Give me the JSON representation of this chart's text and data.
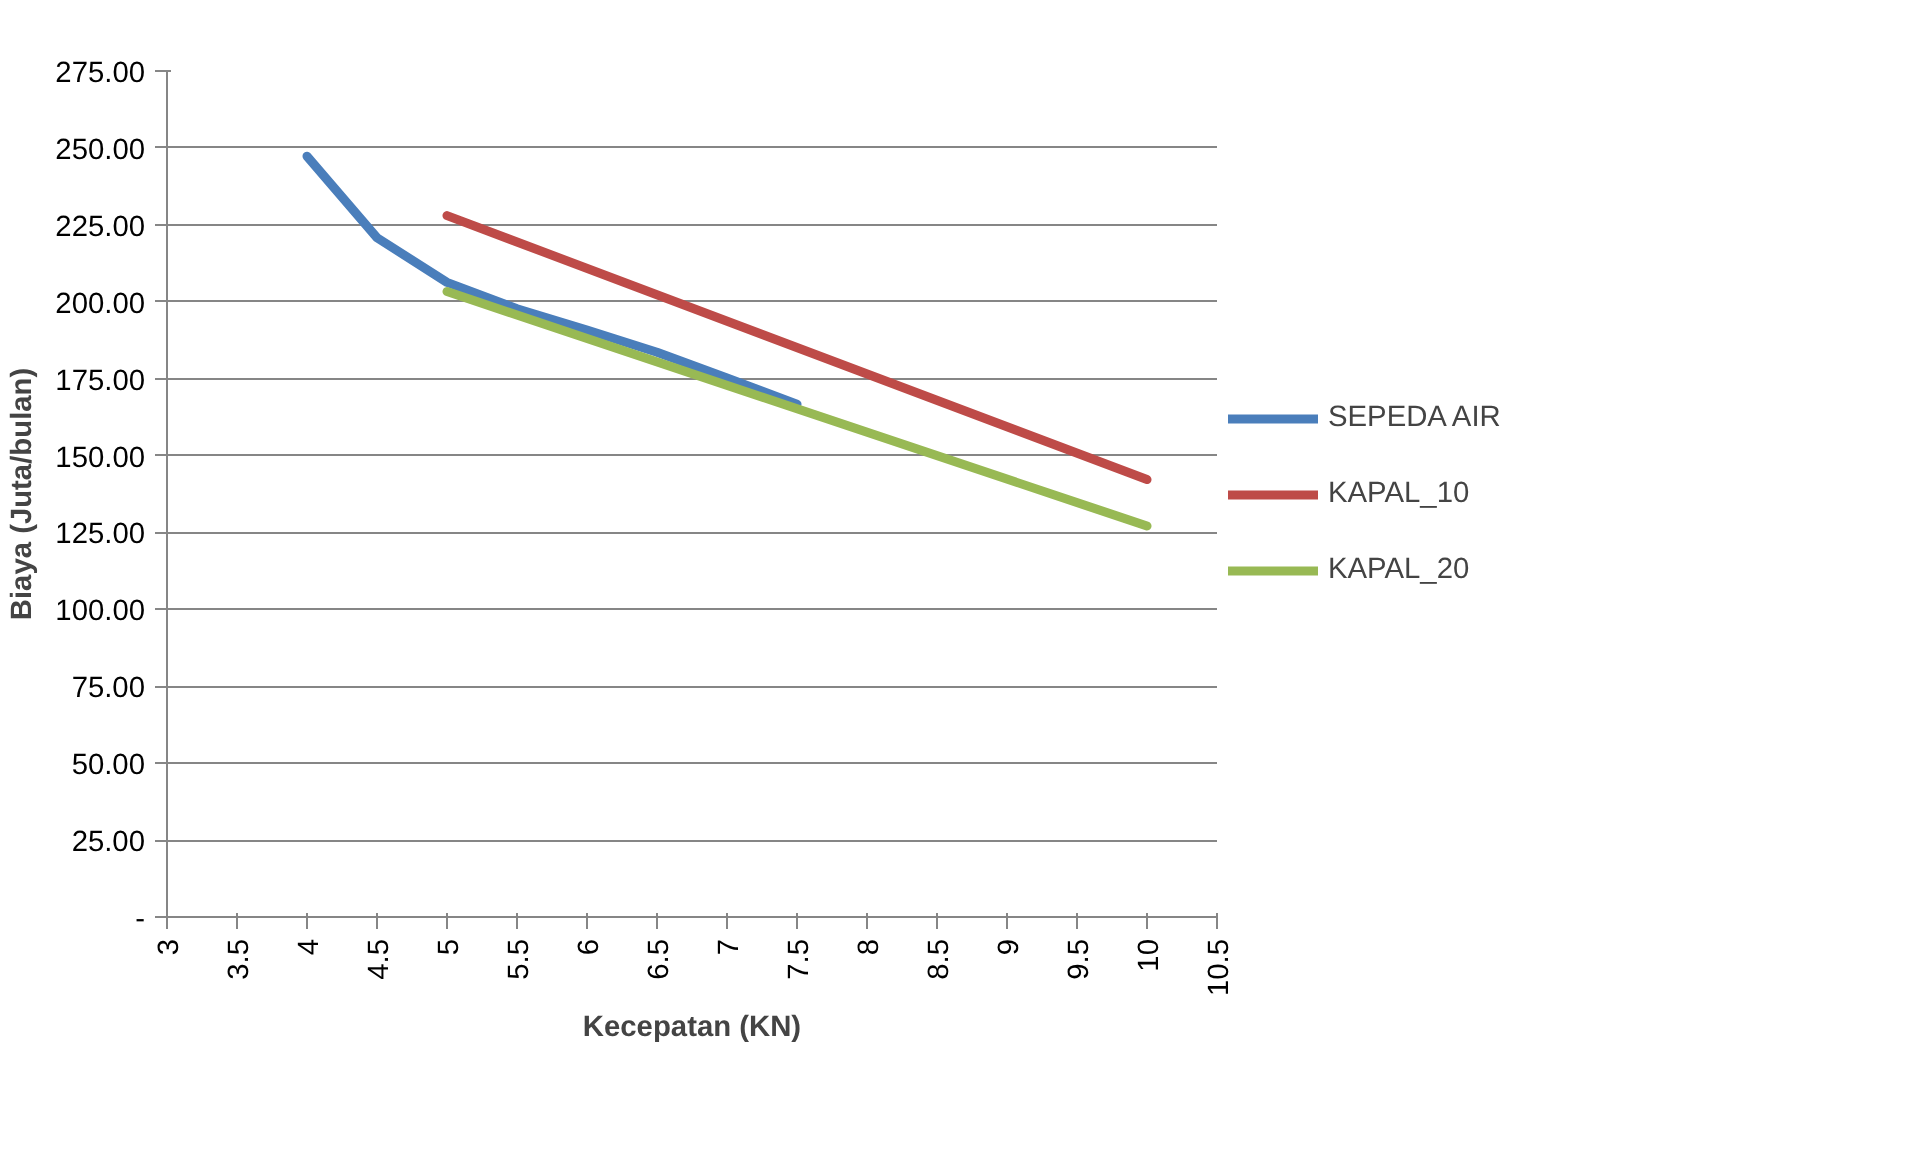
{
  "chart_data": {
    "type": "line",
    "xlabel": "Kecepatan (KN)",
    "ylabel": "Biaya (Juta/bulan)",
    "xlim": [
      3,
      10.5
    ],
    "xticks": [
      3,
      3.5,
      4,
      4.5,
      5,
      5.5,
      6,
      6.5,
      7,
      7.5,
      8,
      8.5,
      9,
      9.5,
      10,
      10.5
    ],
    "ylim": [
      0,
      275
    ],
    "yticks": [
      {
        "value": 0,
        "label": "-"
      },
      {
        "value": 25,
        "label": "25.00"
      },
      {
        "value": 50,
        "label": "50.00"
      },
      {
        "value": 75,
        "label": "75.00"
      },
      {
        "value": 100,
        "label": "100.00"
      },
      {
        "value": 125,
        "label": "125.00"
      },
      {
        "value": 150,
        "label": "150.00"
      },
      {
        "value": 175,
        "label": "175.00"
      },
      {
        "value": 200,
        "label": "200.00"
      },
      {
        "value": 225,
        "label": "225.00"
      },
      {
        "value": 250,
        "label": "250.00"
      },
      {
        "value": 275,
        "label": "275.00"
      }
    ],
    "grid": "y",
    "legend": "right",
    "marker": "none",
    "line_style": "solid",
    "series": [
      {
        "name": "SEPEDA AIR",
        "color": "#4a7ebb",
        "x": [
          4,
          4.5,
          5,
          5.5,
          6,
          6.5,
          7,
          7.5
        ],
        "values": [
          247.3,
          220.8,
          206.3,
          197.7,
          190.8,
          183.6,
          175.2,
          166.7
        ]
      },
      {
        "name": "KAPAL_10",
        "color": "#be4b48",
        "x": [
          5,
          10
        ],
        "values": [
          228,
          142.2
        ]
      },
      {
        "name": "KAPAL_20",
        "color": "#98b954",
        "x": [
          5,
          10
        ],
        "values": [
          203.3,
          127.1
        ]
      }
    ]
  }
}
